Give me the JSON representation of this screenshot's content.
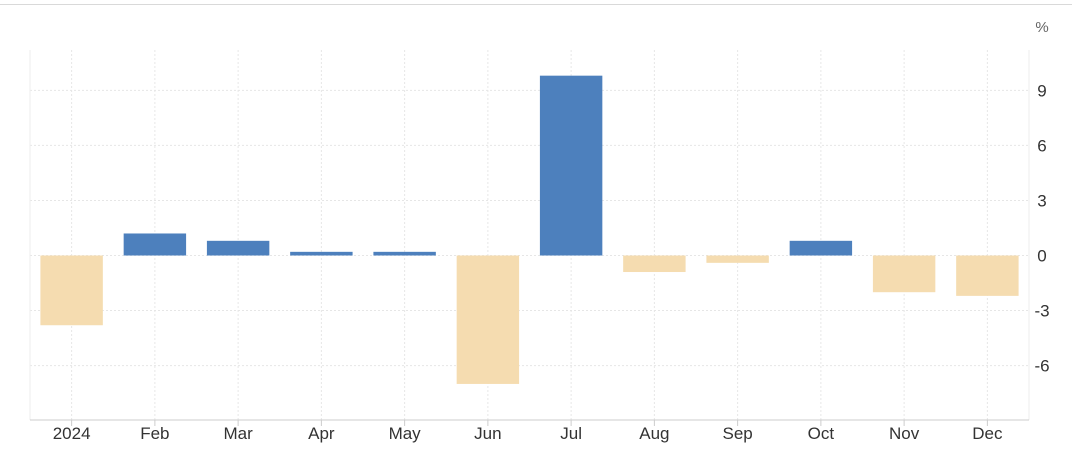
{
  "chart_data": {
    "type": "bar",
    "unit": "%",
    "categories": [
      "2024",
      "Feb",
      "Mar",
      "Apr",
      "May",
      "Jun",
      "Jul",
      "Aug",
      "Sep",
      "Oct",
      "Nov",
      "Dec"
    ],
    "values": [
      -3.8,
      1.2,
      0.8,
      0.2,
      0.2,
      -7.0,
      9.8,
      -0.9,
      -0.4,
      0.8,
      -2.0,
      -2.2
    ],
    "yticks": [
      9,
      6,
      3,
      0,
      -3,
      -6
    ],
    "ylim": [
      -8.9,
      11.2
    ],
    "grid": true,
    "colors": {
      "positive": "#4d80bd",
      "negative": "#f5dcb0",
      "grid": "#e6e6e6",
      "axis": "#cccccc"
    }
  }
}
